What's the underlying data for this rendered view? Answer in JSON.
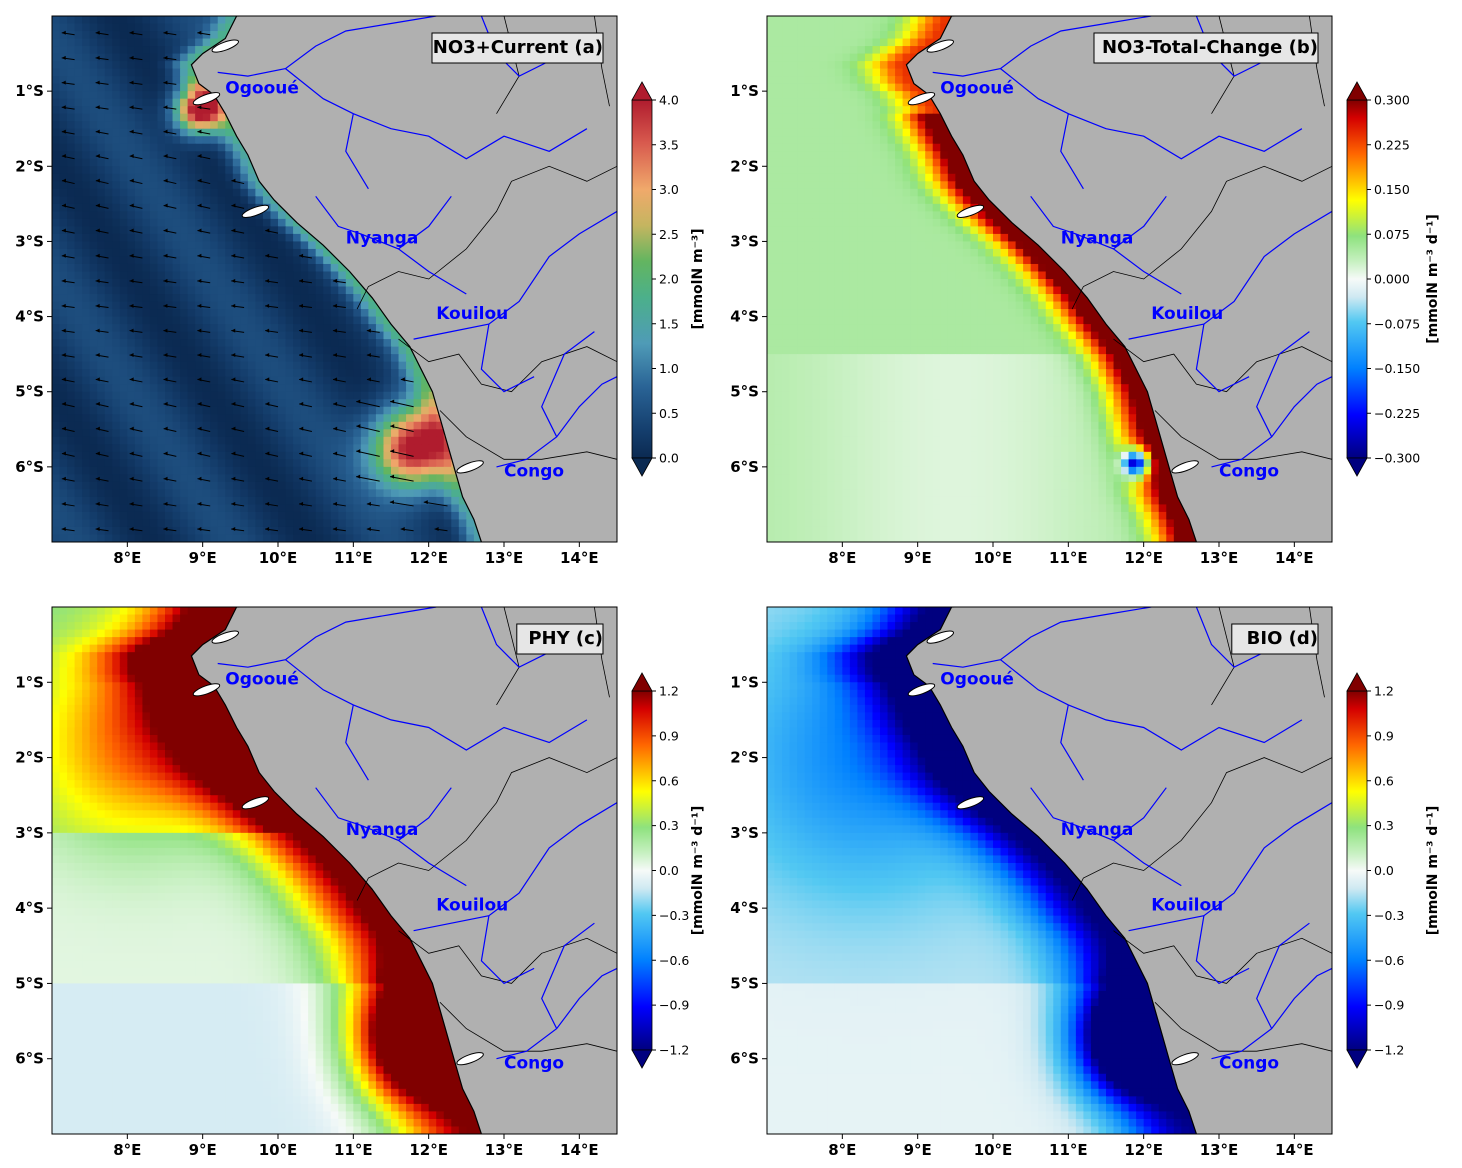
{
  "figure": {
    "panels": [
      {
        "id": "a",
        "title": "NO3+Current (a)",
        "colormap": "rdylbu_r",
        "show_arrows": true,
        "colorbar": {
          "label": "[mmolN m⁻³]",
          "ticks": [
            "0.0",
            "0.5",
            "1.0",
            "1.5",
            "2.0",
            "2.5",
            "3.0",
            "3.5",
            "4.0"
          ],
          "min": 0.0,
          "max": 4.0
        }
      },
      {
        "id": "b",
        "title": "NO3-Total-Change (b)",
        "colormap": "jet_white",
        "show_arrows": false,
        "colorbar": {
          "label": "[mmolN m⁻³ d⁻¹]",
          "ticks": [
            "−0.300",
            "−0.225",
            "−0.150",
            "−0.075",
            "0.000",
            "0.075",
            "0.150",
            "0.225",
            "0.300"
          ],
          "min": -0.3,
          "max": 0.3
        }
      },
      {
        "id": "c",
        "title": "PHY (c)",
        "colormap": "jet_white",
        "show_arrows": false,
        "colorbar": {
          "label": "[mmolN m⁻³ d⁻¹]",
          "ticks": [
            "−1.2",
            "−0.9",
            "−0.6",
            "−0.3",
            "0.0",
            "0.3",
            "0.6",
            "0.9",
            "1.2"
          ],
          "min": -1.2,
          "max": 1.2
        }
      },
      {
        "id": "d",
        "title": "BIO (d)",
        "colormap": "jet_white",
        "show_arrows": false,
        "colorbar": {
          "label": "[mmolN m⁻³ d⁻¹]",
          "ticks": [
            "−1.2",
            "−0.9",
            "−0.6",
            "−0.3",
            "0.0",
            "0.3",
            "0.6",
            "0.9",
            "1.2"
          ],
          "min": -1.2,
          "max": 1.2
        }
      }
    ],
    "x_ticks": [
      "8°E",
      "9°E",
      "10°E",
      "11°E",
      "12°E",
      "13°E",
      "14°E"
    ],
    "y_ticks": [
      "1°S",
      "2°S",
      "3°S",
      "4°S",
      "5°S",
      "6°S"
    ],
    "extent": {
      "lon": [
        7.0,
        14.5
      ],
      "lat": [
        -7.0,
        0.0
      ]
    },
    "river_labels": [
      "Ogooué",
      "Nyanga",
      "Kouilou",
      "Congo"
    ],
    "colors": {
      "land": "#b0b0b0",
      "river": "#0000ff",
      "river_label": "#0000ff",
      "coast": "#000000",
      "title_box": "#e6e6e6"
    }
  }
}
